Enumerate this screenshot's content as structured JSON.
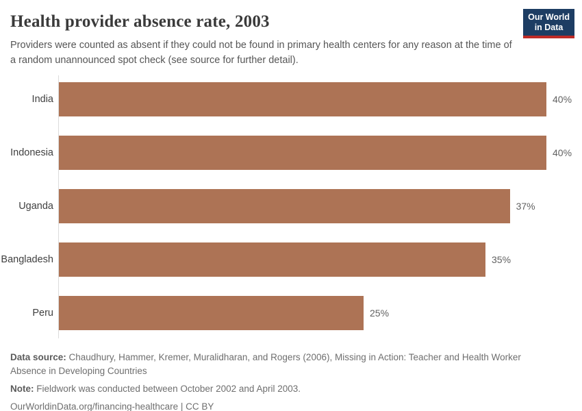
{
  "header": {
    "title": "Health provider absence rate, 2003",
    "subtitle": "Providers were counted as absent if they could not be found in primary health centers for any reason at the time of a random unannounced spot check (see source for further detail).",
    "logo": {
      "line1": "Our World",
      "line2": "in Data"
    }
  },
  "chart_data": {
    "type": "bar",
    "orientation": "horizontal",
    "categories": [
      "India",
      "Indonesia",
      "Uganda",
      "Bangladesh",
      "Peru"
    ],
    "values": [
      40,
      40,
      37,
      35,
      25
    ],
    "value_labels": [
      "40%",
      "40%",
      "37%",
      "35%",
      "25%"
    ],
    "unit": "%",
    "xlim": [
      0,
      40
    ],
    "bar_color": "#AD7355",
    "grid": false,
    "legend": false,
    "title": "Health provider absence rate, 2003"
  },
  "footer": {
    "data_source_label": "Data source:",
    "data_source_text": " Chaudhury, Hammer, Kremer, Muralidharan, and Rogers (2006), Missing in Action: Teacher and Health Worker Absence in Developing Countries",
    "note_label": "Note:",
    "note_text": " Fieldwork was conducted between October 2002 and April 2003.",
    "url_text": "OurWorldinData.org/financing-healthcare | CC BY"
  }
}
